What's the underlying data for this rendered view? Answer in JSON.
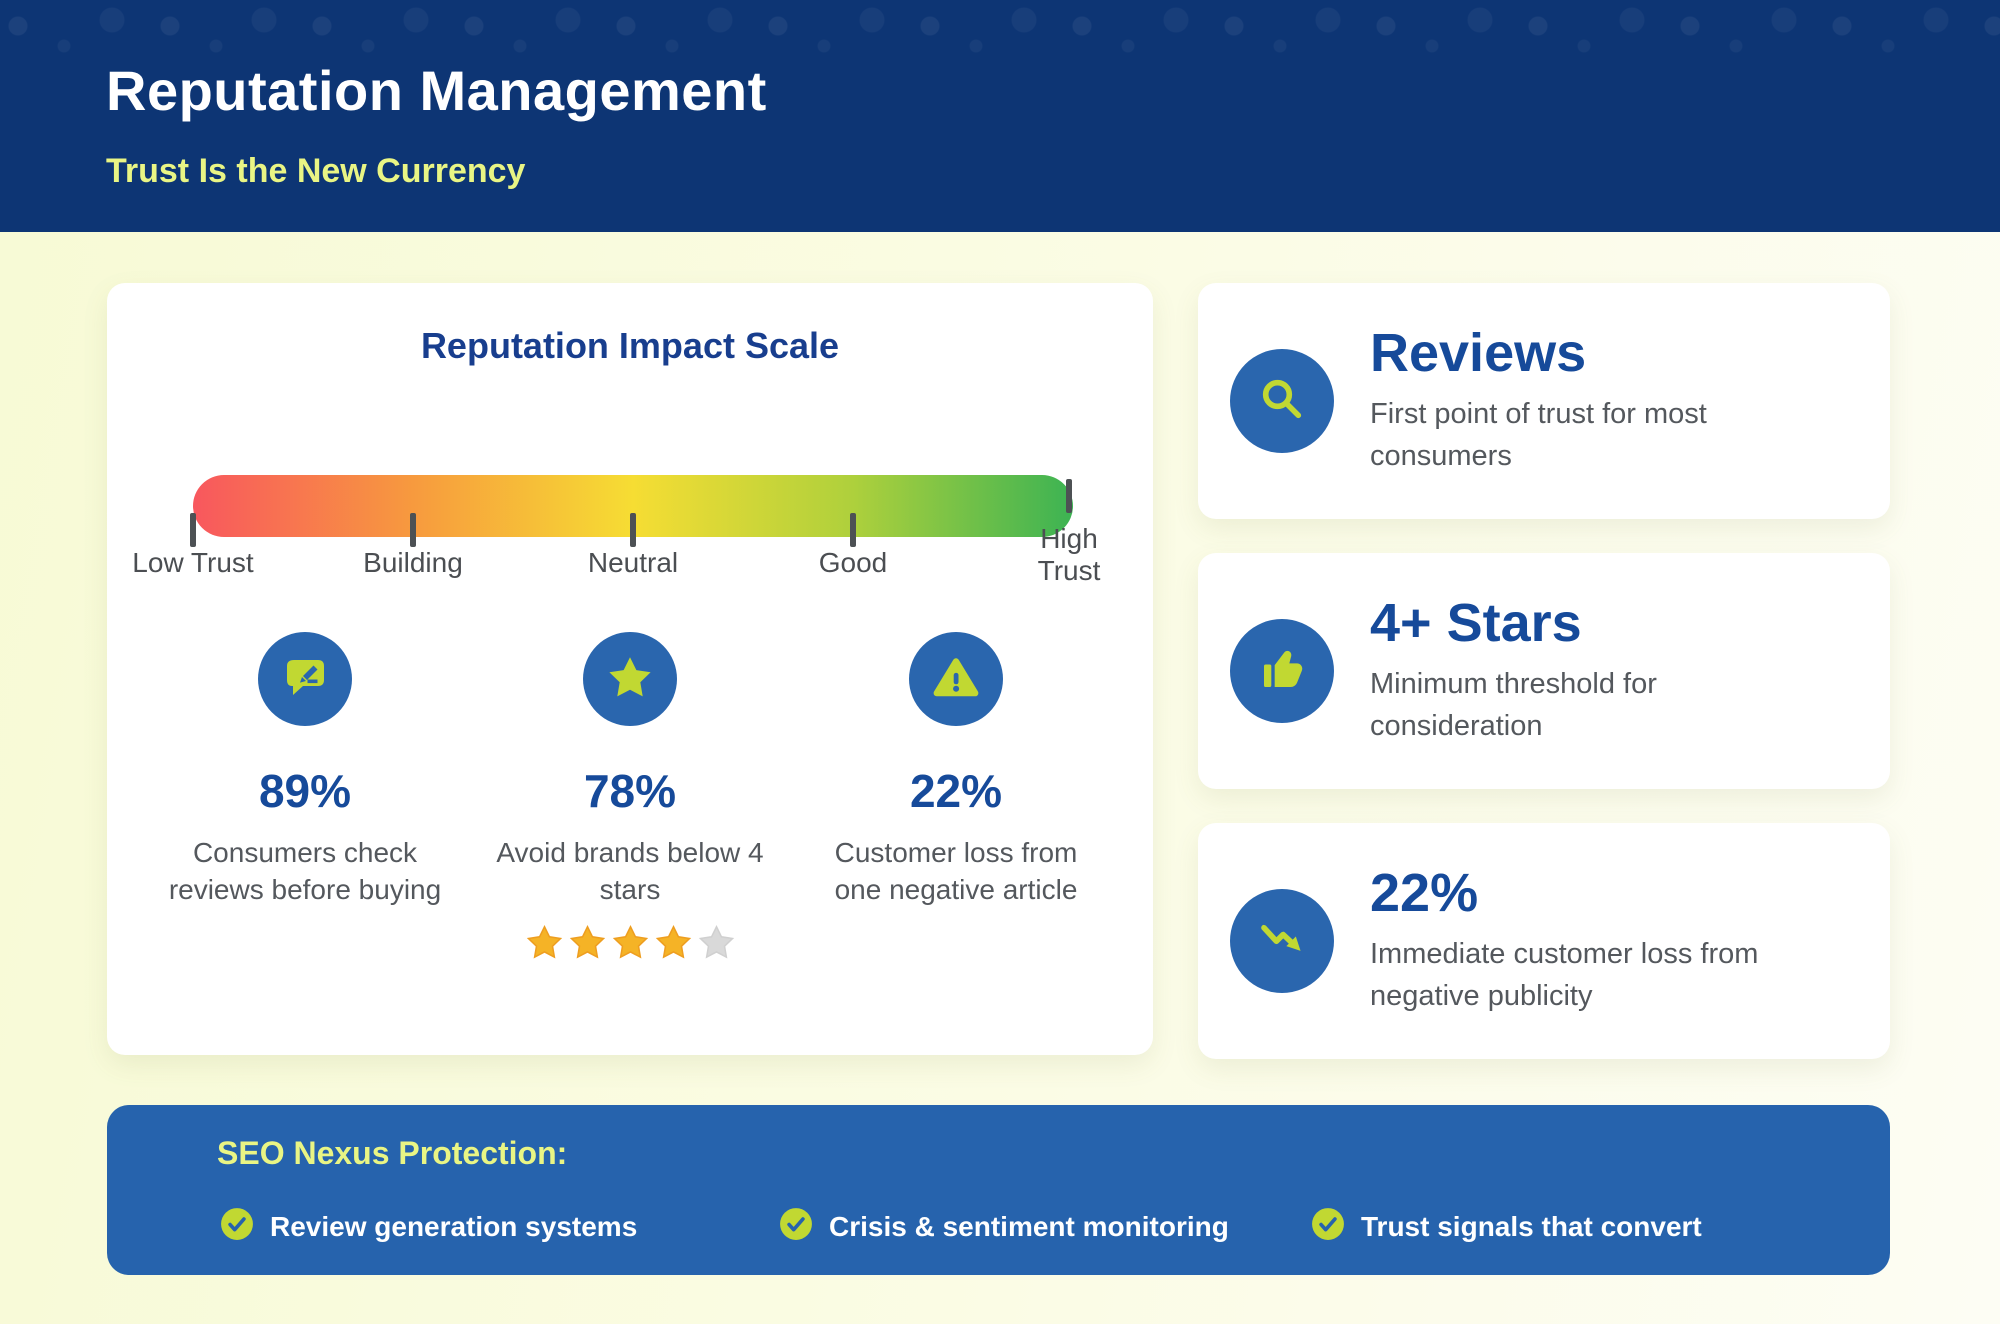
{
  "header": {
    "title": "Reputation Management",
    "subtitle": "Trust Is the New Currency"
  },
  "impact_scale": {
    "title": "Reputation Impact Scale",
    "axis_labels": [
      "Low Trust",
      "Building",
      "Neutral",
      "Good",
      "High Trust"
    ],
    "stats": [
      {
        "icon": "review-icon",
        "value": "89%",
        "description": "Consumers check reviews before buying"
      },
      {
        "icon": "star-icon",
        "value": "78%",
        "description": "Avoid brands below 4 stars",
        "rating": {
          "filled": 4,
          "total": 5
        }
      },
      {
        "icon": "warning-icon",
        "value": "22%",
        "description": "Customer loss from one negative article"
      }
    ]
  },
  "highlight_cards": [
    {
      "icon": "search-icon",
      "title": "Reviews",
      "description": "First point of trust for most consumers"
    },
    {
      "icon": "thumbs-up-icon",
      "title": "4+ Stars",
      "description": "Minimum threshold for consideration"
    },
    {
      "icon": "trend-down-icon",
      "title": "22%",
      "description": "Immediate customer loss from negative publicity"
    }
  ],
  "protection_banner": {
    "title": "SEO Nexus Protection:",
    "items": [
      "Review generation systems",
      "Crisis & sentiment monitoring",
      "Trust signals that convert"
    ]
  },
  "colors": {
    "header_navy": "#0d3574",
    "banner_blue": "#2663ad",
    "icon_circle_blue": "#2a66ae",
    "accent_lime": "#c1d832",
    "heading_blue": "#164a9a",
    "subtitle_yellow": "#e9f584",
    "body_gray": "#54585d",
    "star_gold": "#f5b326",
    "star_gray": "#d9d9d9",
    "scale_gradient": [
      "#f8575e",
      "#f79a3e",
      "#f6dd33",
      "#aed03c",
      "#3cb353"
    ]
  }
}
